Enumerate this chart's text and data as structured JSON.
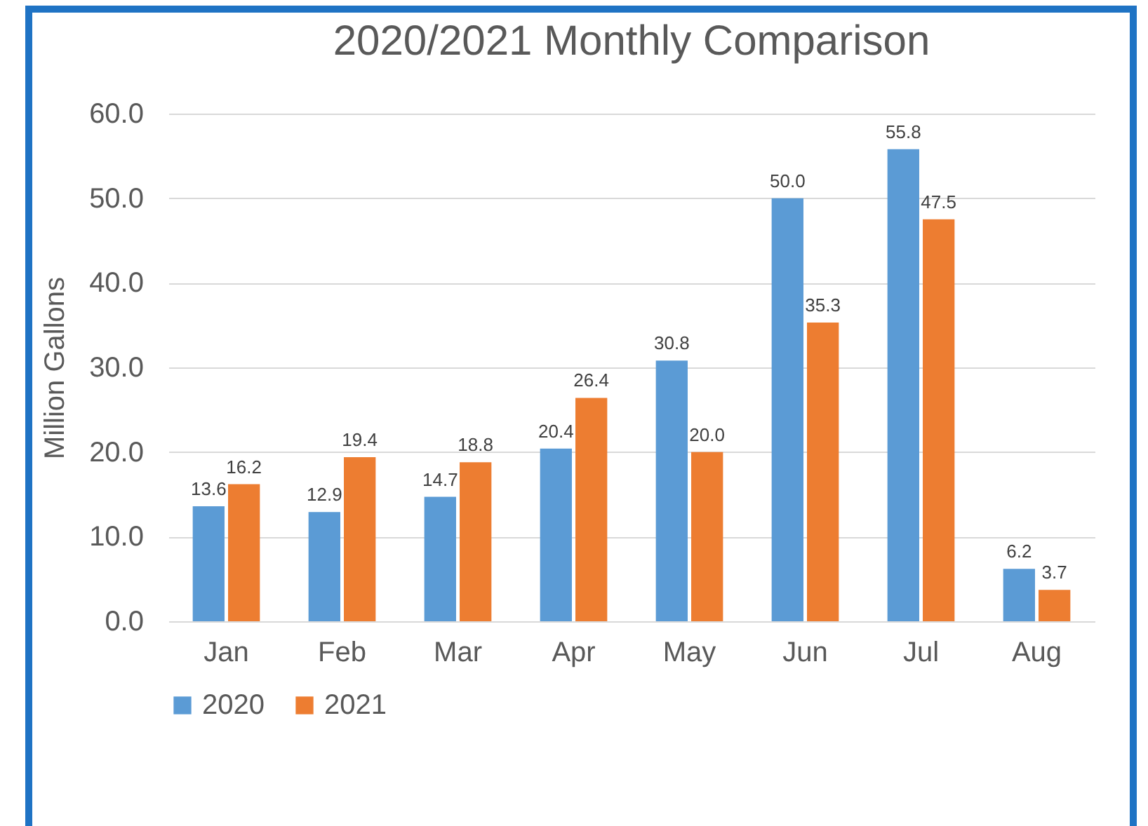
{
  "chart_data": {
    "type": "bar",
    "title": "2020/2021 Monthly Comparison",
    "ylabel": "Million Gallons",
    "categories": [
      "Jan",
      "Feb",
      "Mar",
      "Apr",
      "May",
      "Jun",
      "Jul",
      "Aug"
    ],
    "series": [
      {
        "name": "2020",
        "color": "#5b9bd5",
        "values": [
          13.6,
          12.9,
          14.7,
          20.4,
          30.8,
          50.0,
          55.8,
          6.2
        ],
        "value_labels": [
          "13.6",
          "12.9",
          "14.7",
          "20.4",
          "30.8",
          "50.0",
          "55.8",
          "6.2"
        ]
      },
      {
        "name": "2021",
        "color": "#ed7d31",
        "values": [
          16.2,
          19.4,
          18.8,
          26.4,
          20.0,
          35.3,
          47.5,
          3.7
        ],
        "value_labels": [
          "16.2",
          "19.4",
          "18.8",
          "26.4",
          "20.0",
          "35.3",
          "47.5",
          "3.7"
        ]
      }
    ],
    "ylim": [
      0,
      60
    ],
    "yticks": [
      {
        "value": 0,
        "label": "0.0"
      },
      {
        "value": 10,
        "label": "10.0"
      },
      {
        "value": 20,
        "label": "20.0"
      },
      {
        "value": 30,
        "label": "30.0"
      },
      {
        "value": 40,
        "label": "40.0"
      },
      {
        "value": 50,
        "label": "50.0"
      },
      {
        "value": 60,
        "label": "60.0"
      }
    ],
    "grid": "y",
    "legend": "bottom"
  }
}
